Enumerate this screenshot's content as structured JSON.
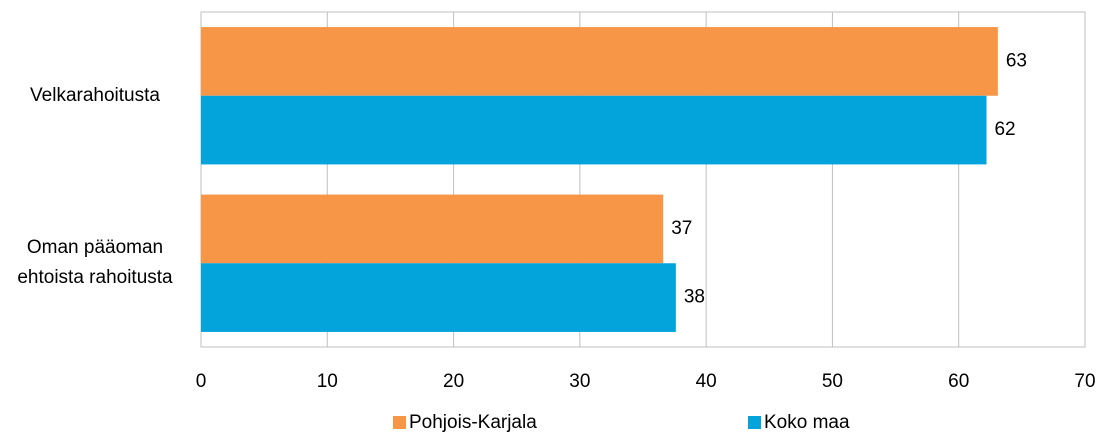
{
  "chart_data": {
    "type": "bar",
    "orientation": "horizontal",
    "categories": [
      "Velkarahoitusta",
      "Oman pääoman ehtoista rahoitusta"
    ],
    "series": [
      {
        "name": "Pohjois-Karjala",
        "color": "#f79646",
        "values": [
          63.1,
          36.6
        ],
        "value_labels": [
          "63",
          "37"
        ]
      },
      {
        "name": "Koko maa",
        "color": "#03a3db",
        "values": [
          62.2,
          37.6
        ],
        "value_labels": [
          "62",
          "38"
        ]
      }
    ],
    "xlim": [
      0,
      70
    ],
    "xticks": [
      0,
      10,
      20,
      30,
      40,
      50,
      60,
      70
    ],
    "grid": true,
    "legend": "bottom"
  }
}
